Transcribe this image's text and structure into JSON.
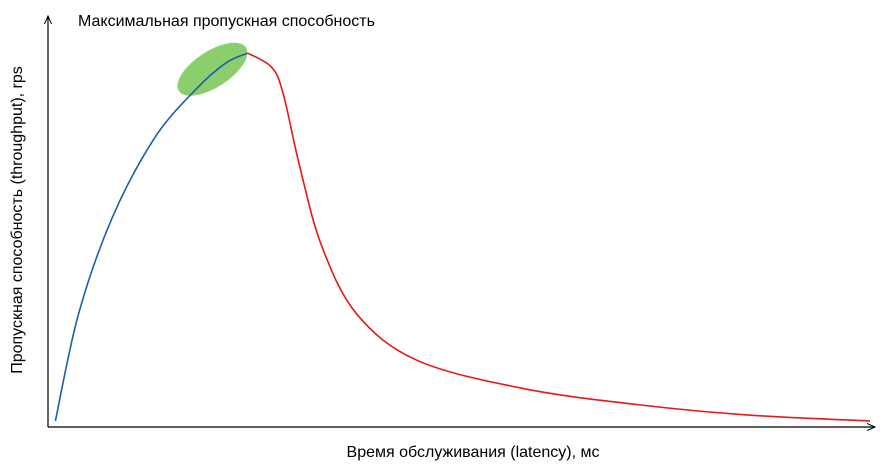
{
  "chart_data": {
    "type": "line",
    "title": "",
    "xlabel": "Время обслуживания (latency), мс",
    "ylabel": "Пропускная способность (throughput), rps",
    "annotation": "Максимальная пропускная способность",
    "x_ticks": false,
    "y_ticks": false,
    "grid": false,
    "xlim": [
      0,
      100
    ],
    "ylim": [
      0,
      100
    ],
    "series": [
      {
        "color": "#1f5fa8",
        "segment": "rising",
        "points": [
          [
            0.9,
            1.5
          ],
          [
            3.7,
            28.0
          ],
          [
            7.8,
            52.0
          ],
          [
            13.0,
            72.0
          ],
          [
            18.0,
            84.0
          ],
          [
            21.6,
            90.5
          ],
          [
            24.3,
            93.0
          ]
        ]
      },
      {
        "color": "#e41a1a",
        "segment": "falling",
        "points": [
          [
            24.3,
            93.0
          ],
          [
            27.2,
            89.5
          ],
          [
            28.6,
            83.0
          ],
          [
            30.6,
            65.0
          ],
          [
            33.3,
            45.0
          ],
          [
            37.6,
            28.0
          ],
          [
            45.0,
            16.5
          ],
          [
            58.0,
            9.5
          ],
          [
            72.0,
            5.5
          ],
          [
            85.0,
            3.0
          ],
          [
            100.0,
            1.5
          ]
        ]
      }
    ],
    "highlight": {
      "color": "#7dc95e",
      "cx": 20.0,
      "cy": 89.0
    }
  }
}
